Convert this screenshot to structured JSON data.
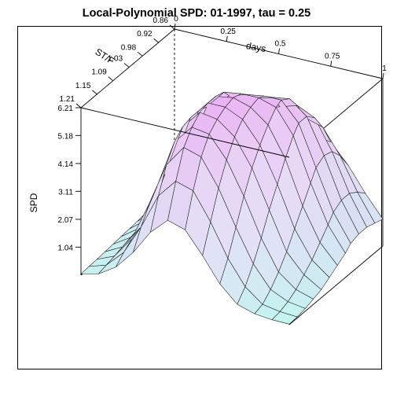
{
  "chart_data": {
    "type": "surface",
    "title": "Local-Polynomial SPD: 01-1997, tau =  0.25",
    "zlabel": "SPD",
    "xlabel": "days",
    "ylabel": "ST/F",
    "x_ticks": [
      "0",
      "0.25",
      "0.5",
      "0.75",
      "1"
    ],
    "y_ticks": [
      "0.86",
      "0.92",
      "0.98",
      "1.03",
      "1.09",
      "1.15",
      "1.21"
    ],
    "z_ticks": [
      "1.04",
      "2.07",
      "3.11",
      "4.14",
      "5.18",
      "6.21"
    ],
    "xlim": [
      0,
      1
    ],
    "ylim": [
      0.86,
      1.21
    ],
    "zlim": [
      0,
      6.21
    ],
    "y_grid": [
      1.21,
      1.18,
      1.15,
      1.12,
      1.09,
      1.06,
      1.03,
      1.0,
      0.98,
      0.95,
      0.92,
      0.89,
      0.86
    ],
    "z_values": [
      [
        0.05,
        0.07,
        0.09,
        0.12,
        0.15,
        0.18,
        0.21,
        0.24,
        0.27,
        0.3,
        0.33,
        0.36,
        0.38
      ],
      [
        0.2,
        0.28,
        0.36,
        0.45,
        0.55,
        0.63,
        0.7,
        0.77,
        0.82,
        0.86,
        0.9,
        0.93,
        0.95
      ],
      [
        0.6,
        0.9,
        1.15,
        1.3,
        1.4,
        1.45,
        1.5,
        1.55,
        1.58,
        1.6,
        1.62,
        1.63,
        1.64
      ],
      [
        1.3,
        2.0,
        2.6,
        3.0,
        3.2,
        3.3,
        3.35,
        3.4,
        3.4,
        3.3,
        3.1,
        2.8,
        2.4
      ],
      [
        2.2,
        3.3,
        4.2,
        4.8,
        5.1,
        5.2,
        5.2,
        5.1,
        4.9,
        4.6,
        4.1,
        3.5,
        2.8
      ],
      [
        2.8,
        4.0,
        5.0,
        5.5,
        5.8,
        5.9,
        5.9,
        5.8,
        5.5,
        5.1,
        4.5,
        3.8,
        3.0
      ],
      [
        2.6,
        3.8,
        4.8,
        5.4,
        5.7,
        5.9,
        6.0,
        5.9,
        5.7,
        5.3,
        4.7,
        3.9,
        3.1
      ],
      [
        1.8,
        2.8,
        3.8,
        4.6,
        5.2,
        5.6,
        5.8,
        5.9,
        5.8,
        5.5,
        4.9,
        4.2,
        3.3
      ],
      [
        0.9,
        1.6,
        2.5,
        3.4,
        4.2,
        4.8,
        5.3,
        5.7,
        5.8,
        5.6,
        5.1,
        4.4,
        3.5
      ],
      [
        0.3,
        0.7,
        1.3,
        2.0,
        2.8,
        3.5,
        4.2,
        4.8,
        5.1,
        5.1,
        4.8,
        4.2,
        3.4
      ],
      [
        0.1,
        0.2,
        0.5,
        0.9,
        1.4,
        2.0,
        2.6,
        3.2,
        3.6,
        3.8,
        3.7,
        3.3,
        2.7
      ],
      [
        0.03,
        0.08,
        0.2,
        0.4,
        0.7,
        1.0,
        1.4,
        1.8,
        2.1,
        2.3,
        2.3,
        2.1,
        1.8
      ],
      [
        0.02,
        0.04,
        0.1,
        0.2,
        0.3,
        0.5,
        0.7,
        0.9,
        1.1,
        1.2,
        1.2,
        1.1,
        1.0
      ]
    ],
    "colors": {
      "low": "#b9f5ee",
      "high": "#e9a6f2",
      "mesh": "#1a1a1a",
      "box": "#000000"
    }
  }
}
